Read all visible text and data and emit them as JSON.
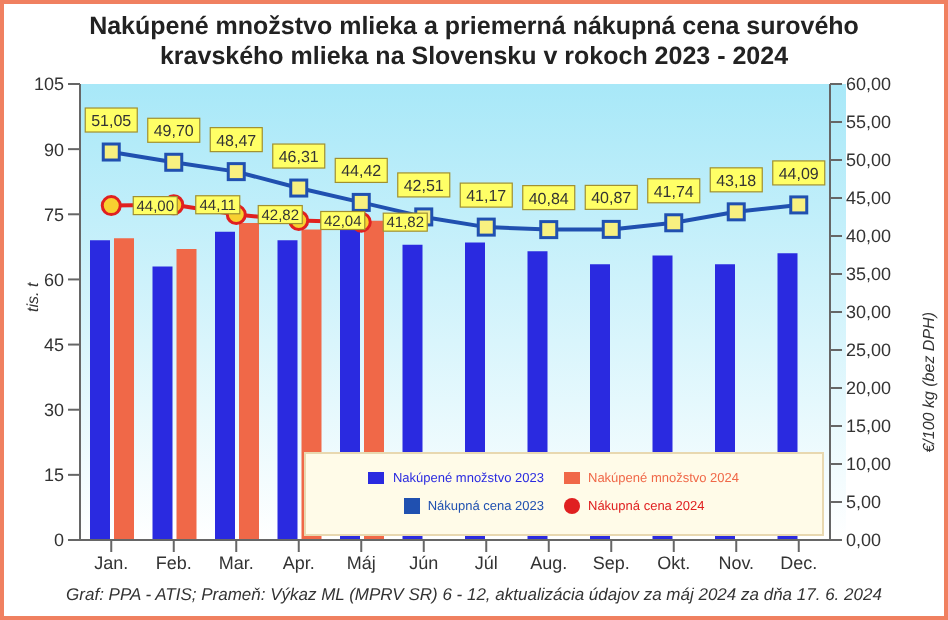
{
  "chart_data": {
    "type": "bar",
    "title": "Nakúpené množstvo mlieka a priemerná nákupná cena surového kravského mlieka na Slovensku v rokoch 2023 - 2024",
    "categories": [
      "Jan.",
      "Feb.",
      "Mar.",
      "Apr.",
      "Máj",
      "Jún",
      "Júl",
      "Aug.",
      "Sep.",
      "Okt.",
      "Nov.",
      "Dec."
    ],
    "series": [
      {
        "name": "Nakúpené množstvo 2023",
        "color": "#2a2ae0",
        "values": [
          69,
          63,
          71,
          69,
          71.5,
          68,
          68.5,
          66.5,
          63.5,
          65.5,
          63.5,
          66
        ]
      },
      {
        "name": "Nakúpené množstvo 2024",
        "color": "#f06848",
        "values": [
          69.5,
          67,
          73,
          71.5,
          73.5,
          null,
          null,
          null,
          null,
          null,
          null,
          null
        ]
      },
      {
        "name": "Nákupná cena 2023",
        "type": "line",
        "axis": "y2",
        "marker": "square",
        "color": "#2050b0",
        "values": [
          51.05,
          49.7,
          48.47,
          46.31,
          44.42,
          42.51,
          41.17,
          40.84,
          40.87,
          41.74,
          43.18,
          44.09
        ],
        "value_labels": [
          "51,05",
          "49,70",
          "48,47",
          "46,31",
          "44,42",
          "42,51",
          "41,17",
          "40,84",
          "40,87",
          "41,74",
          "43,18",
          "44,09"
        ]
      },
      {
        "name": "Nákupná cena 2024",
        "type": "line",
        "axis": "y2",
        "marker": "circle",
        "color": "#e02020",
        "values": [
          44.0,
          44.11,
          42.82,
          42.04,
          41.82,
          null,
          null,
          null,
          null,
          null,
          null,
          null
        ],
        "value_labels": [
          "44,00",
          "44,11",
          "42,82",
          "42,04",
          "41,82",
          null,
          null,
          null,
          null,
          null,
          null,
          null
        ]
      }
    ],
    "ylabel": "tis. t",
    "y2label": "€/100 kg (bez DPH)",
    "ylim": [
      0,
      105
    ],
    "yticks": [
      0,
      15,
      30,
      45,
      60,
      75,
      90,
      105
    ],
    "y2lim": [
      0,
      60
    ],
    "y2ticks": [
      {
        "value": 0,
        "label": "0,00"
      },
      {
        "value": 5,
        "label": "5,00"
      },
      {
        "value": 10,
        "label": "10,00"
      },
      {
        "value": 15,
        "label": "15,00"
      },
      {
        "value": 20,
        "label": "20,00"
      },
      {
        "value": 25,
        "label": "25,00"
      },
      {
        "value": 30,
        "label": "30,00"
      },
      {
        "value": 35,
        "label": "35,00"
      },
      {
        "value": 40,
        "label": "40,00"
      },
      {
        "value": 45,
        "label": "45,00"
      },
      {
        "value": 50,
        "label": "50,00"
      },
      {
        "value": 55,
        "label": "55,00"
      },
      {
        "value": 60,
        "label": "60,00"
      }
    ],
    "legend": "bottom",
    "annotations": [
      "Graf: PPA - ATIS; Prameň: Výkaz ML (MPRV SR) 6 - 12, aktualizácia údajov za máj 2024 za dňa 17. 6. 2024"
    ]
  }
}
